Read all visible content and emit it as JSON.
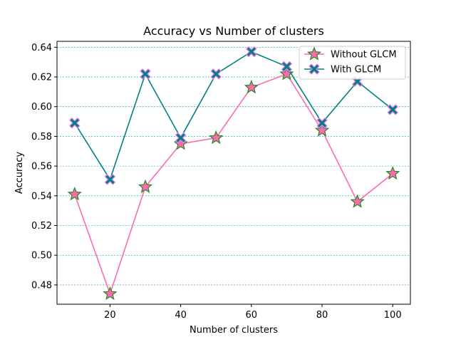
{
  "chart_data": {
    "type": "line",
    "title": "Accuracy vs Number of clusters",
    "xlabel": "Number of clusters",
    "ylabel": "Accuracy",
    "x": [
      10,
      20,
      30,
      40,
      50,
      60,
      70,
      80,
      90,
      100
    ],
    "xlim": [
      5,
      105
    ],
    "ylim": [
      0.467,
      0.644
    ],
    "xticks": [
      20,
      40,
      60,
      80,
      100
    ],
    "yticks": [
      0.48,
      0.5,
      0.52,
      0.54,
      0.56,
      0.58,
      0.6,
      0.62,
      0.64
    ],
    "grid": "horizontal dashed",
    "legend_position": "top-right",
    "series": [
      {
        "name": "Without GLCM",
        "values": [
          0.541,
          0.474,
          0.546,
          0.575,
          0.579,
          0.613,
          0.622,
          0.584,
          0.536,
          0.555
        ],
        "color": "#ff69b4",
        "marker": "star",
        "marker_fill": "#ff69b4",
        "marker_edge": "#228b22"
      },
      {
        "name": "With GLCM",
        "values": [
          0.589,
          0.551,
          0.622,
          0.579,
          0.622,
          0.637,
          0.627,
          0.589,
          0.617,
          0.598
        ],
        "color": "#008080",
        "marker": "x",
        "marker_fill": "#008080",
        "marker_edge": "#ee82ee"
      }
    ]
  }
}
